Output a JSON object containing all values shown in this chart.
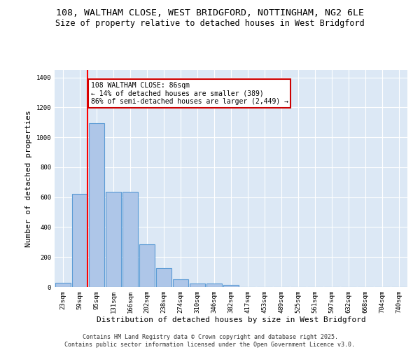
{
  "title_line1": "108, WALTHAM CLOSE, WEST BRIDGFORD, NOTTINGHAM, NG2 6LE",
  "title_line2": "Size of property relative to detached houses in West Bridgford",
  "xlabel": "Distribution of detached houses by size in West Bridgford",
  "ylabel": "Number of detached properties",
  "categories": [
    "23sqm",
    "59sqm",
    "95sqm",
    "131sqm",
    "166sqm",
    "202sqm",
    "238sqm",
    "274sqm",
    "310sqm",
    "346sqm",
    "382sqm",
    "417sqm",
    "453sqm",
    "489sqm",
    "525sqm",
    "561sqm",
    "597sqm",
    "632sqm",
    "668sqm",
    "704sqm",
    "740sqm"
  ],
  "values": [
    30,
    620,
    1095,
    635,
    635,
    285,
    125,
    50,
    25,
    25,
    15,
    0,
    0,
    0,
    0,
    0,
    0,
    0,
    0,
    0,
    0
  ],
  "bar_color": "#aec6e8",
  "bar_edge_color": "#5b9bd5",
  "redline_x": 1.45,
  "annotation_text": "108 WALTHAM CLOSE: 86sqm\n← 14% of detached houses are smaller (389)\n86% of semi-detached houses are larger (2,449) →",
  "annotation_box_color": "#ffffff",
  "annotation_box_edge": "#cc0000",
  "ylim": [
    0,
    1450
  ],
  "yticks": [
    0,
    200,
    400,
    600,
    800,
    1000,
    1200,
    1400
  ],
  "background_color": "#dce8f5",
  "grid_color": "#ffffff",
  "fig_background": "#ffffff",
  "footer_line1": "Contains HM Land Registry data © Crown copyright and database right 2025.",
  "footer_line2": "Contains public sector information licensed under the Open Government Licence v3.0.",
  "title_fontsize": 9.5,
  "subtitle_fontsize": 8.5,
  "axis_label_fontsize": 8,
  "tick_fontsize": 6.5,
  "footer_fontsize": 6,
  "annotation_fontsize": 7
}
